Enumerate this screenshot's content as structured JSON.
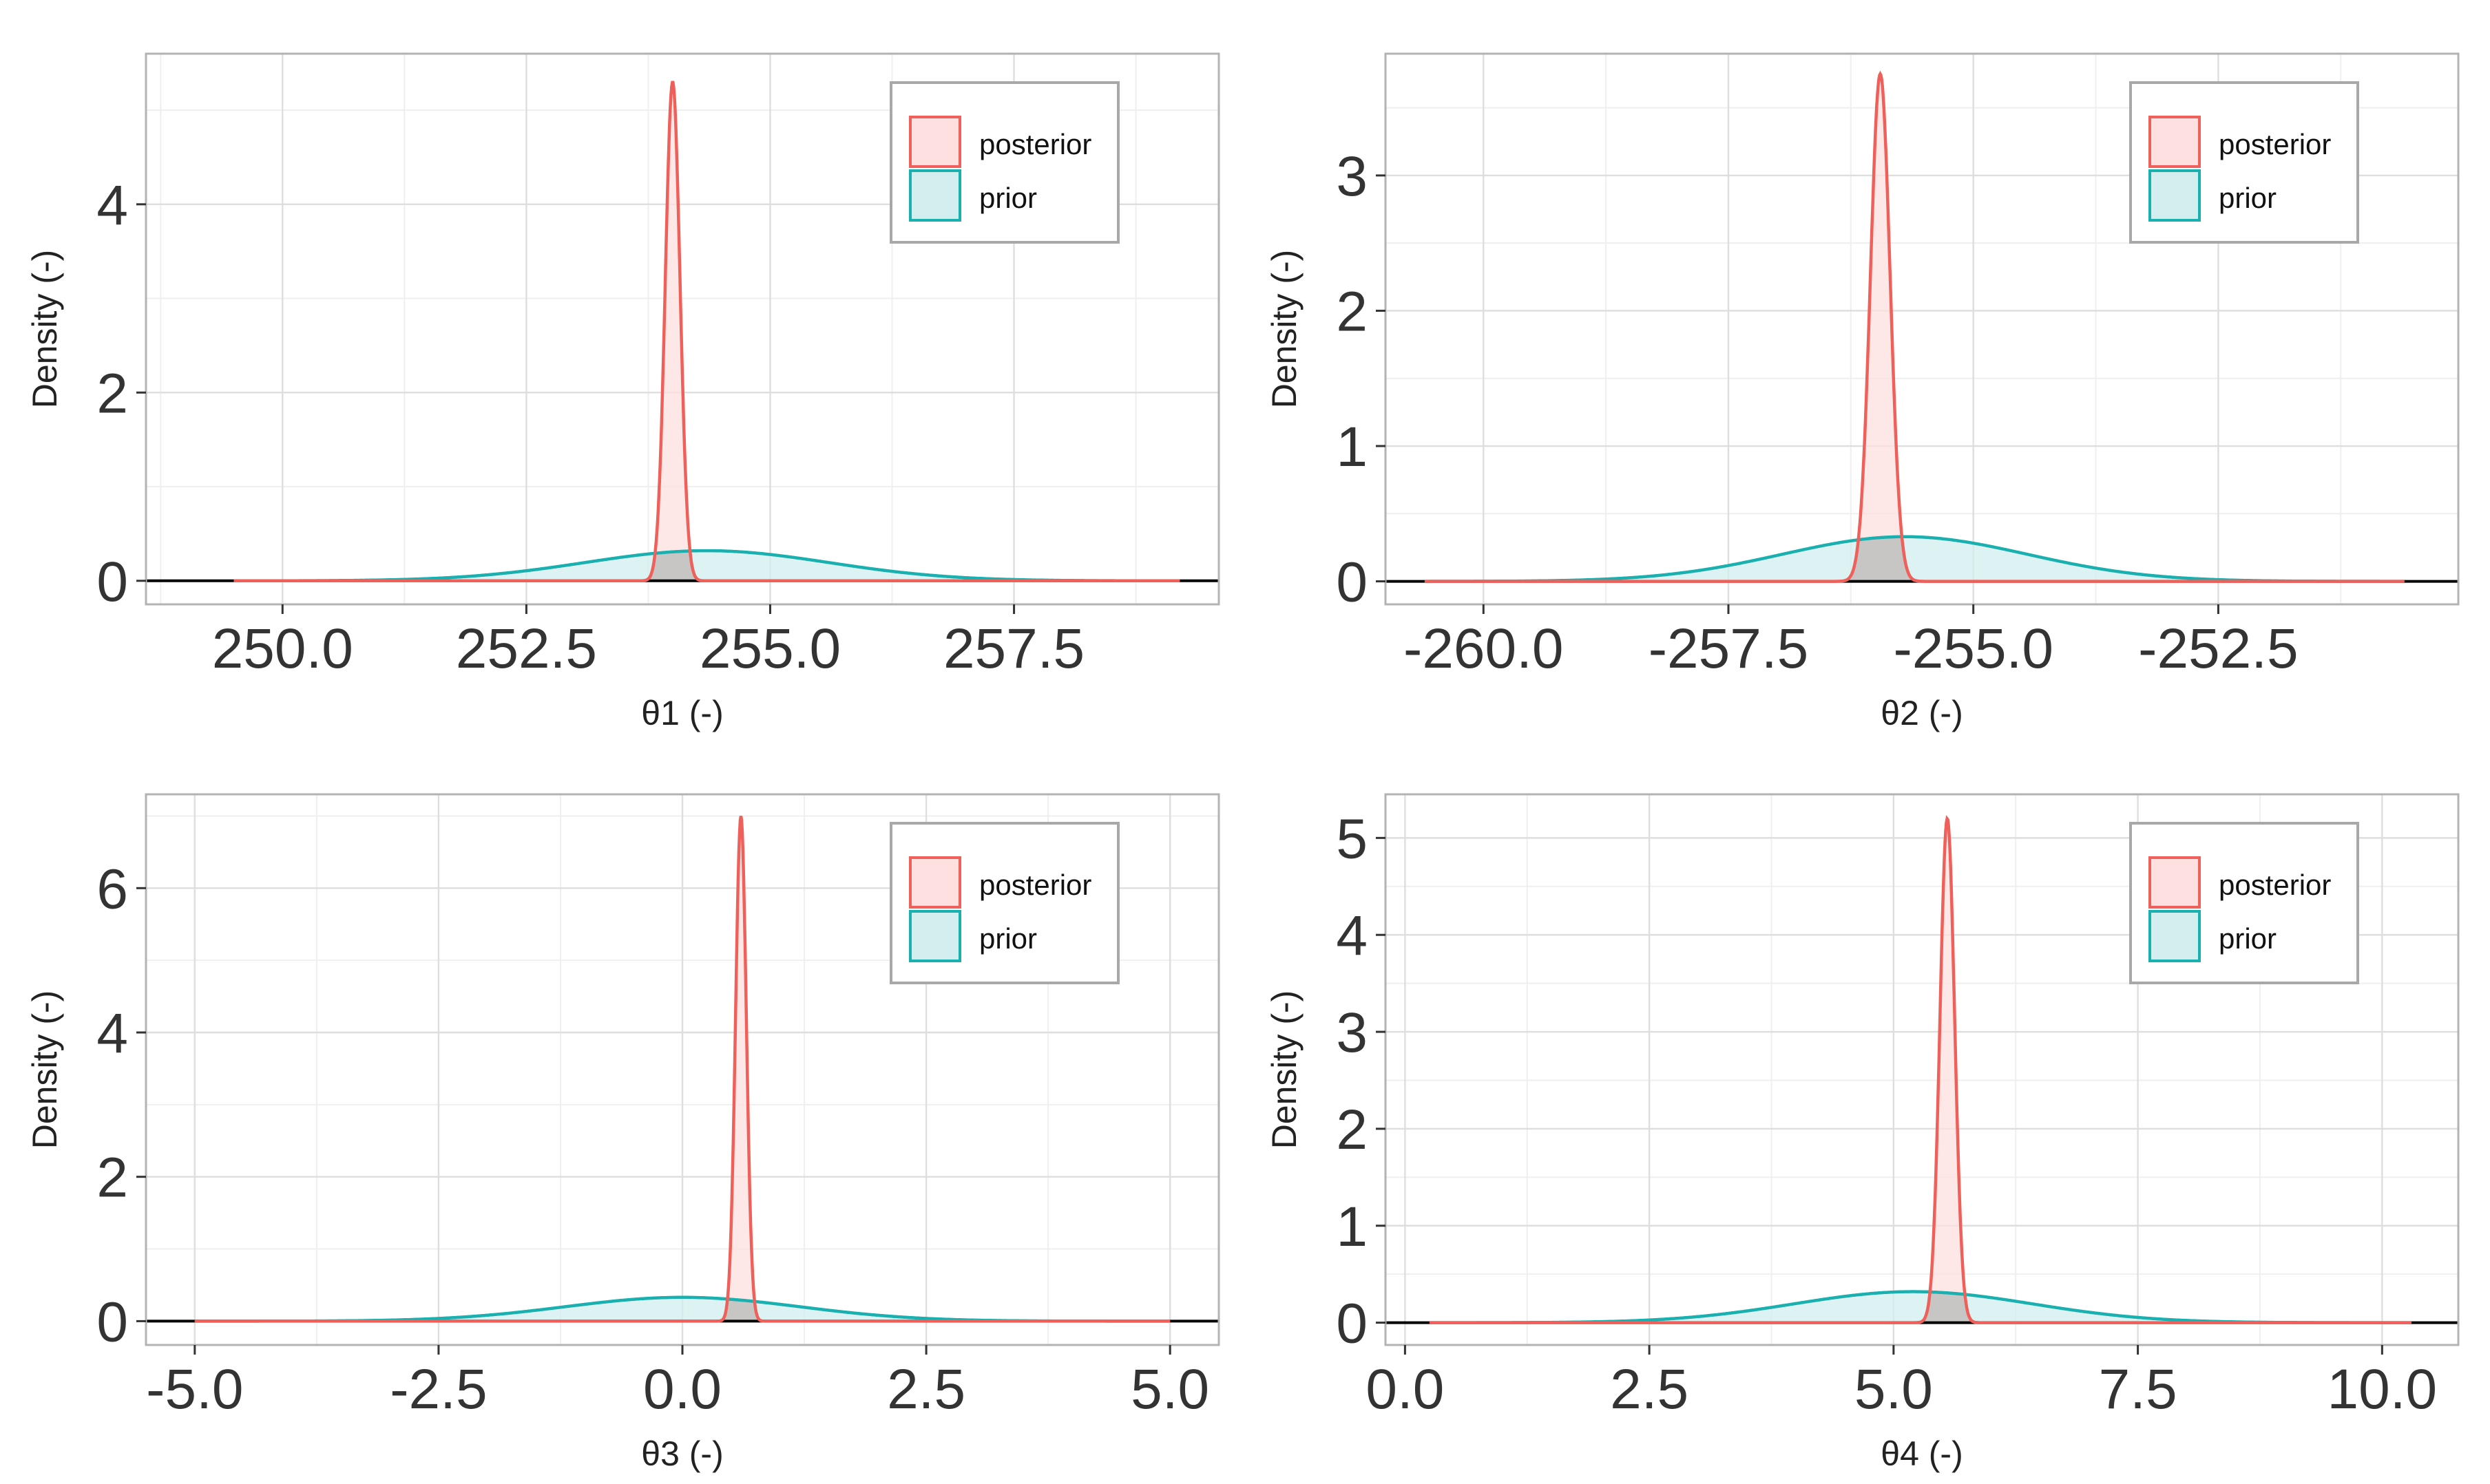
{
  "colors": {
    "posterior_line": "#f0605a",
    "posterior_fill": "#fde0df",
    "prior_line": "#1ab0b0",
    "prior_fill": "#d2eeee",
    "overlap_fill": "#bdbdbd",
    "grid_major": "#dedede",
    "grid_minor": "#efefef",
    "panel_border": "#b3b3b3",
    "baseline": "#000000"
  },
  "legend": {
    "entries": [
      "posterior",
      "prior"
    ]
  },
  "chart_data": [
    {
      "type": "area",
      "title": "",
      "xlabel": "θ1 (-)",
      "ylabel": "Density (-)",
      "xlim": [
        248.6,
        259.6
      ],
      "ylim": [
        -0.25,
        5.6
      ],
      "x_ticks": [
        250.0,
        252.5,
        255.0,
        257.5
      ],
      "x_tick_labels": [
        "250.0",
        "252.5",
        "255.0",
        "257.5"
      ],
      "y_ticks": [
        0,
        2,
        4
      ],
      "y_tick_labels": [
        "0",
        "2",
        "4"
      ],
      "x_range": [
        249.5,
        259.2
      ],
      "series": [
        {
          "name": "posterior",
          "distribution": "normal",
          "mean": 254.0,
          "sd": 0.075,
          "peak_density": 5.3
        },
        {
          "name": "prior",
          "distribution": "normal",
          "mean": 254.35,
          "sd": 1.25,
          "peak_density": 0.32
        }
      ]
    },
    {
      "type": "area",
      "title": "",
      "xlabel": "θ2 (-)",
      "ylabel": "Density (-)",
      "xlim": [
        -261.0,
        -250.05
      ],
      "ylim": [
        -0.17,
        3.9
      ],
      "x_ticks": [
        -260.0,
        -257.5,
        -255.0,
        -252.5
      ],
      "x_tick_labels": [
        "-260.0",
        "-257.5",
        "-255.0",
        "-252.5"
      ],
      "y_ticks": [
        0,
        1,
        2,
        3
      ],
      "y_tick_labels": [
        "0",
        "1",
        "2",
        "3"
      ],
      "x_range": [
        -260.6,
        -250.6
      ],
      "series": [
        {
          "name": "posterior",
          "distribution": "normal",
          "mean": -255.95,
          "sd": 0.1,
          "peak_density": 3.75
        },
        {
          "name": "prior",
          "distribution": "normal",
          "mean": -255.7,
          "sd": 1.25,
          "peak_density": 0.33
        }
      ]
    },
    {
      "type": "area",
      "title": "",
      "xlabel": "θ3 (-)",
      "ylabel": "Density (-)",
      "xlim": [
        -5.5,
        5.5
      ],
      "ylim": [
        -0.33,
        7.3
      ],
      "x_ticks": [
        -5.0,
        -2.5,
        0.0,
        2.5,
        5.0
      ],
      "x_tick_labels": [
        "-5.0",
        "-2.5",
        "0.0",
        "2.5",
        "5.0"
      ],
      "y_ticks": [
        0,
        2,
        4,
        6
      ],
      "y_tick_labels": [
        "0",
        "2",
        "4",
        "6"
      ],
      "x_range": [
        -5.0,
        5.0
      ],
      "series": [
        {
          "name": "posterior",
          "distribution": "normal",
          "mean": 0.6,
          "sd": 0.055,
          "peak_density": 7.0
        },
        {
          "name": "prior",
          "distribution": "normal",
          "mean": 0.0,
          "sd": 1.2,
          "peak_density": 0.33
        }
      ]
    },
    {
      "type": "area",
      "title": "",
      "xlabel": "θ4 (-)",
      "ylabel": "Density (-)",
      "xlim": [
        -0.2,
        10.78
      ],
      "ylim": [
        -0.23,
        5.45
      ],
      "x_ticks": [
        0.0,
        2.5,
        5.0,
        7.5,
        10.0
      ],
      "x_tick_labels": [
        "0.0",
        "2.5",
        "5.0",
        "7.5",
        "10.0"
      ],
      "y_ticks": [
        0,
        1,
        2,
        3,
        4,
        5
      ],
      "y_tick_labels": [
        "0",
        "1",
        "2",
        "3",
        "4",
        "5"
      ],
      "x_range": [
        0.25,
        10.3
      ],
      "series": [
        {
          "name": "posterior",
          "distribution": "normal",
          "mean": 5.55,
          "sd": 0.075,
          "peak_density": 5.2
        },
        {
          "name": "prior",
          "distribution": "normal",
          "mean": 5.2,
          "sd": 1.22,
          "peak_density": 0.32
        }
      ]
    }
  ]
}
